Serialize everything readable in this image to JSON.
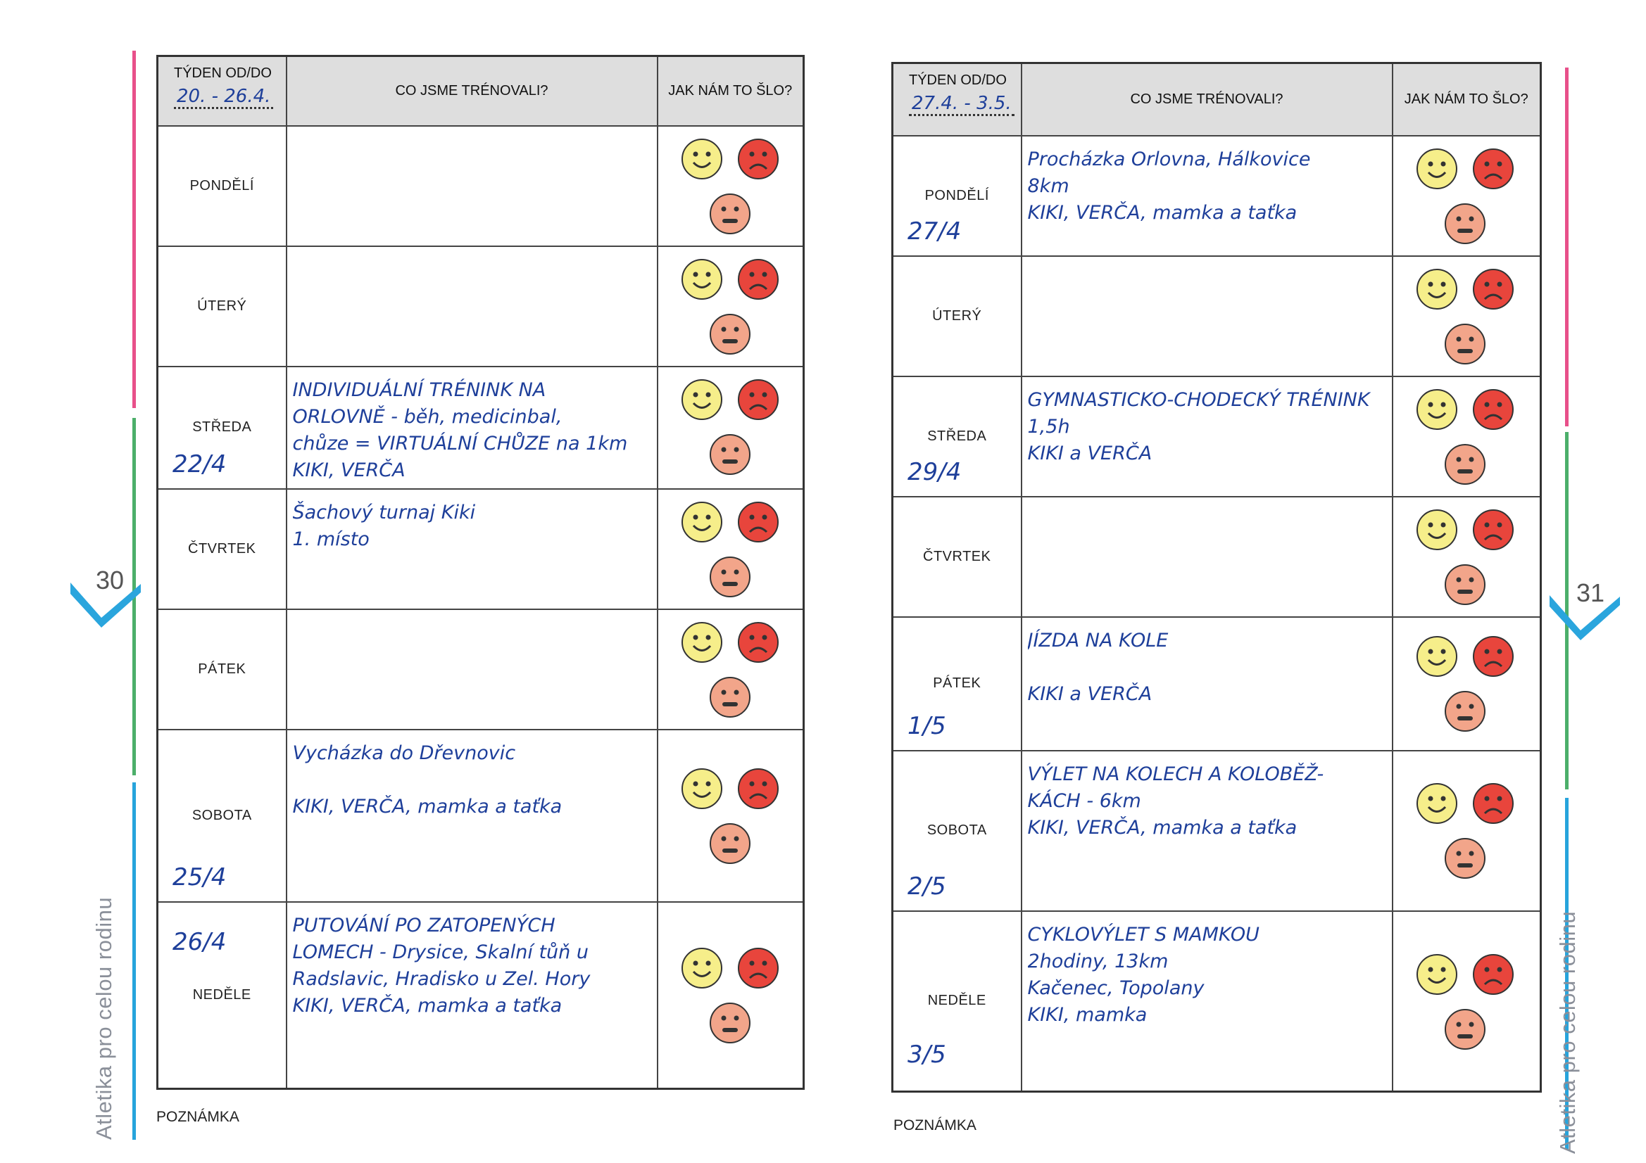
{
  "labels": {
    "week_label": "TÝDEN od/do",
    "activity_header": "CO JSME TRÉNOVALI?",
    "mood_header": "JAK NÁM TO ŠLO?",
    "note_label": "POZNÁMKA",
    "side_title": "Atletika pro celou rodinu"
  },
  "colors": {
    "pink_strip": "#e8508a",
    "green_strip": "#4caf6a",
    "blue_strip": "#27a4dc",
    "check_blue": "#2aa5dd",
    "ink_blue": "#1e3f9a",
    "happy_face": "#f6ee8a",
    "sad_face": "#e8453c",
    "neutral_face": "#f2a58a"
  },
  "icons": [
    "happy-face-icon",
    "sad-face-icon",
    "neutral-face-icon",
    "checkmark-icon"
  ],
  "pages": [
    {
      "page_number": "30",
      "week_range": "20. - 26.4.",
      "days": [
        {
          "name": "PONDĚLÍ",
          "date": "",
          "notes": []
        },
        {
          "name": "ÚTERÝ",
          "date": "",
          "notes": []
        },
        {
          "name": "STŘEDA",
          "date": "22/4",
          "notes": [
            "INDIVIDUÁLNÍ TRÉNINK NA",
            "ORLOVNĚ - běh, medicinbal,",
            "chůze = VIRTUÁLNÍ CHŮZE na 1km",
            "KIKI, VERČA"
          ]
        },
        {
          "name": "ČTVRTEK",
          "date": "",
          "notes": [
            "Šachový turnaj Kiki",
            "1. místo"
          ]
        },
        {
          "name": "PÁTEK",
          "date": "",
          "notes": []
        },
        {
          "name": "SOBOTA",
          "date": "25/4",
          "notes": [
            "Vycházka do Dřevnovic",
            "",
            "KIKI, VERČA, mamka a taťka"
          ]
        },
        {
          "name": "NEDĚLE",
          "date": "26/4",
          "notes": [
            "PUTOVÁNÍ PO ZATOPENÝCH",
            "LOMECH - Drysice, Skalní tůň u",
            "Radslavic, Hradisko u Zel. Hory",
            "KIKI, VERČA, mamka a taťka"
          ]
        }
      ]
    },
    {
      "page_number": "31",
      "week_range": "27.4. - 3.5.",
      "days": [
        {
          "name": "PONDĚLÍ",
          "date": "27/4",
          "notes": [
            "Procházka Orlovna, Hálkovice",
            "8km",
            "KIKI, VERČA, mamka a taťka"
          ]
        },
        {
          "name": "ÚTERÝ",
          "date": "",
          "notes": []
        },
        {
          "name": "STŘEDA",
          "date": "29/4",
          "notes": [
            "GYMNASTICKO-CHODECKÝ TRÉNINK",
            "1,5h",
            "KIKI a VERČA"
          ]
        },
        {
          "name": "ČTVRTEK",
          "date": "",
          "notes": []
        },
        {
          "name": "PÁTEK",
          "date": "1/5",
          "notes": [
            "JÍZDA NA KOLE",
            "",
            "KIKI a VERČA"
          ]
        },
        {
          "name": "SOBOTA",
          "date": "2/5",
          "notes": [
            "VÝLET NA KOLECH A KOLOBĚŽ-",
            "KÁCH - 6km",
            "KIKI, VERČA, mamka a taťka"
          ]
        },
        {
          "name": "NEDĚLE",
          "date": "3/5",
          "notes": [
            "CYKLOVÝLET S MAMKOU",
            "2hodiny, 13km",
            "Kačenec, Topolany",
            "KIKI, mamka"
          ]
        }
      ]
    }
  ]
}
